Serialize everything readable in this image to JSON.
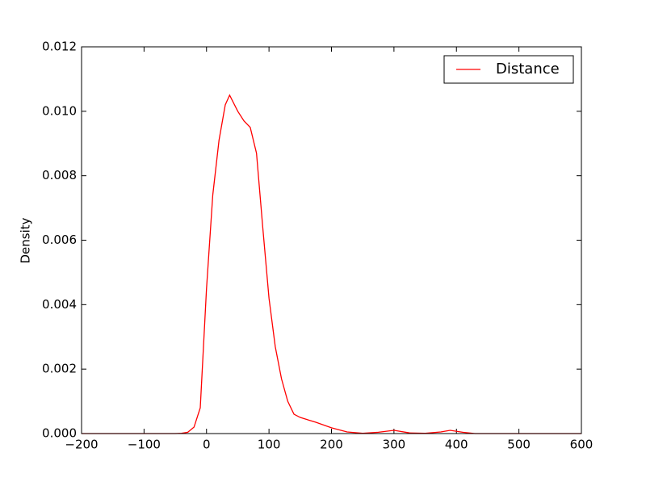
{
  "chart_data": {
    "type": "line",
    "y_label": "Density",
    "x": [
      -200,
      -100,
      -50,
      -40,
      -30,
      -20,
      -10,
      0,
      10,
      20,
      30,
      37,
      50,
      60,
      70,
      80,
      90,
      100,
      110,
      120,
      130,
      140,
      150,
      175,
      200,
      225,
      250,
      275,
      300,
      325,
      350,
      375,
      390,
      410,
      430,
      500,
      600
    ],
    "series": [
      {
        "name": "Distance",
        "color": "#ff0000",
        "values": [
          0,
          0,
          0,
          1e-05,
          4e-05,
          0.0002,
          0.0008,
          0.0045,
          0.0074,
          0.0091,
          0.0102,
          0.0105,
          0.01,
          0.0097,
          0.0095,
          0.0087,
          0.0064,
          0.0042,
          0.0027,
          0.0017,
          0.001,
          0.0006,
          0.0005,
          0.00035,
          0.00018,
          5e-05,
          1e-05,
          4e-05,
          0.0001,
          2e-05,
          1e-05,
          5e-05,
          0.0001,
          4e-05,
          0,
          0,
          0
        ]
      }
    ],
    "xlim": [
      -200,
      600
    ],
    "xticks": [
      {
        "value": -200,
        "label": "−200"
      },
      {
        "value": -100,
        "label": "−100"
      },
      0,
      100,
      200,
      300,
      400,
      500,
      600
    ],
    "ylim": [
      0,
      0.012
    ],
    "yticks": [
      {
        "value": 0,
        "label": "0.000"
      },
      {
        "value": 0.002,
        "label": "0.002"
      },
      {
        "value": 0.004,
        "label": "0.004"
      },
      {
        "value": 0.006,
        "label": "0.006"
      },
      {
        "value": 0.008,
        "label": "0.008"
      },
      {
        "value": 0.01,
        "label": "0.010"
      },
      {
        "value": 0.012,
        "label": "0.012"
      }
    ],
    "legend": "upper right"
  }
}
